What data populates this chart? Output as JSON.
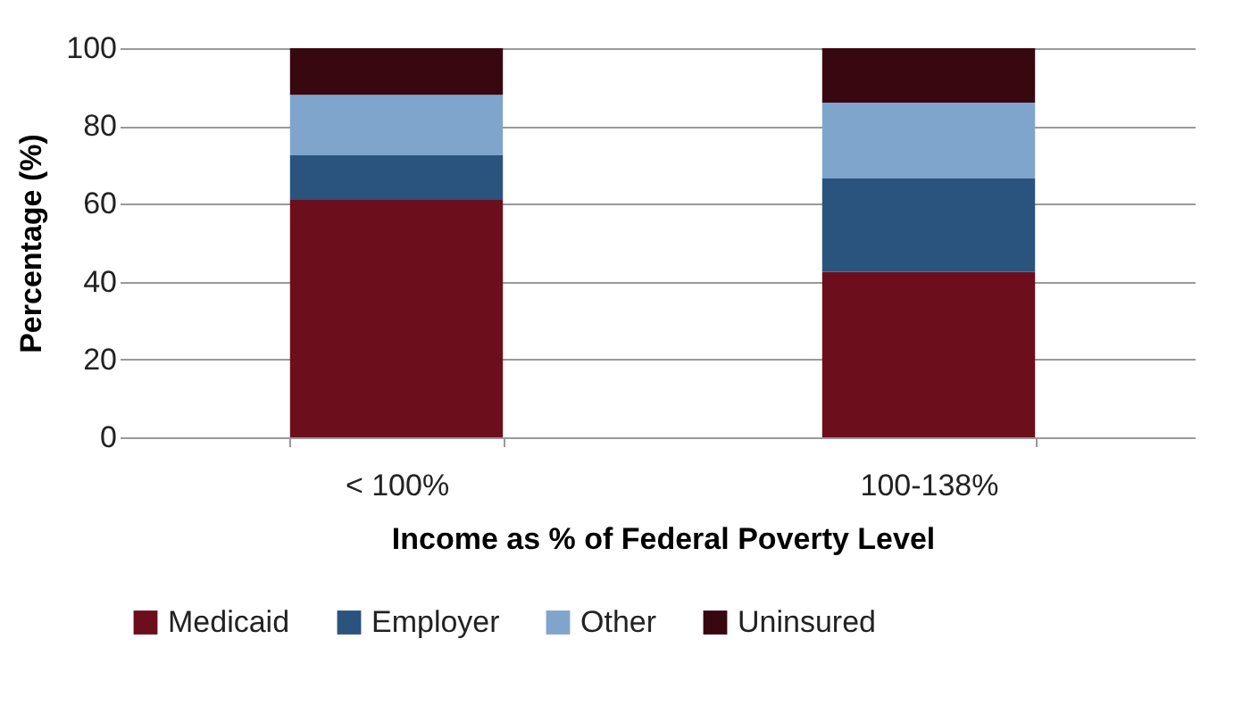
{
  "chart_data": {
    "type": "bar",
    "stacked": true,
    "xlabel": "Income as % of Federal Poverty Level",
    "ylabel": "Percentage (%)",
    "categories": [
      "< 100%",
      "100-138%"
    ],
    "series": [
      {
        "name": "Medicaid",
        "color": "#6d0e1c",
        "values": [
          61,
          42.5
        ]
      },
      {
        "name": "Employer",
        "color": "#2a547e",
        "values": [
          11.5,
          24
        ]
      },
      {
        "name": "Other",
        "color": "#80a5cc",
        "values": [
          15.5,
          19.5
        ]
      },
      {
        "name": "Uninsured",
        "color": "#380810",
        "values": [
          12,
          14
        ]
      }
    ],
    "ylim": [
      0,
      100
    ],
    "yticks": [
      0,
      20,
      40,
      60,
      80,
      100
    ],
    "grid": "y",
    "legend": "bottom"
  }
}
